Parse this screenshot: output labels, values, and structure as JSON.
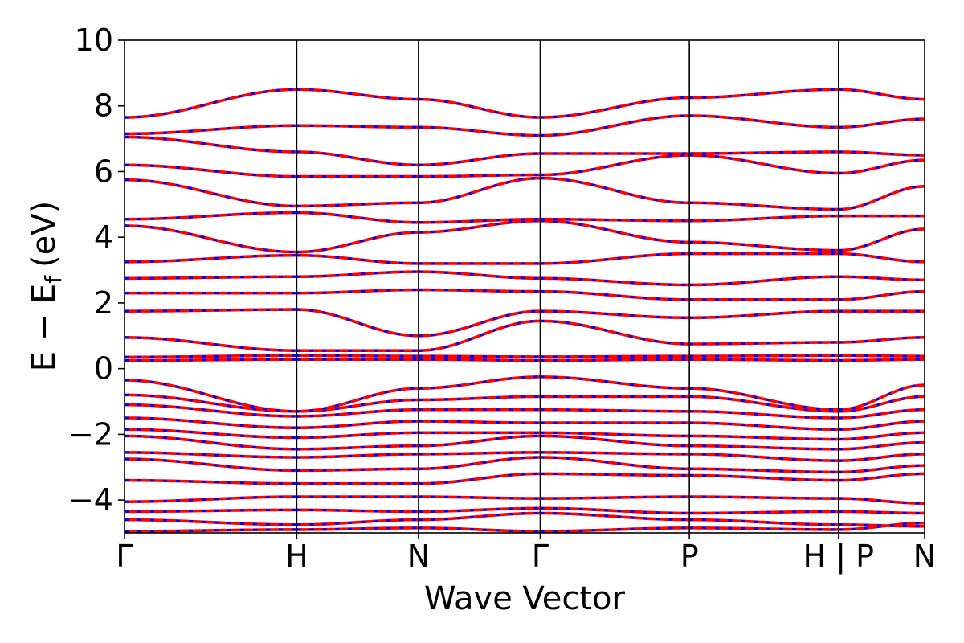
{
  "chart_data": {
    "type": "line",
    "xlabel": "Wave Vector",
    "ylabel": {
      "main": "E − E",
      "subscript": "f",
      "unit": "(eV)"
    },
    "ylim": [
      -5,
      10
    ],
    "yticks": [
      -4,
      -2,
      0,
      2,
      4,
      6,
      8,
      10
    ],
    "grid": false,
    "legend": "none",
    "k_path": [
      {
        "label": "Γ",
        "x": 0.0
      },
      {
        "label": "H",
        "x": 1.0
      },
      {
        "label": "N",
        "x": 1.707
      },
      {
        "label": "Γ",
        "x": 2.414
      },
      {
        "label": "P",
        "x": 3.28
      },
      {
        "label": "H | P",
        "x": 4.146
      },
      {
        "label": "N",
        "x": 4.646
      }
    ],
    "xlim": [
      0.0,
      4.646
    ],
    "segments": [
      {
        "from": "Γ",
        "to": "H",
        "x": [
          0.0,
          1.0
        ]
      },
      {
        "from": "H",
        "to": "N",
        "x": [
          1.0,
          1.707
        ]
      },
      {
        "from": "N",
        "to": "Γ",
        "x": [
          1.707,
          2.414
        ]
      },
      {
        "from": "Γ",
        "to": "P",
        "x": [
          2.414,
          3.28
        ]
      },
      {
        "from": "P",
        "to": "H",
        "x": [
          3.28,
          4.146
        ]
      },
      {
        "from": "P",
        "to": "N",
        "x": [
          4.146,
          4.646
        ]
      }
    ],
    "series": [
      {
        "style": "solid",
        "color": "#ff0000",
        "band_energies_at_kpoints": [
          [
            -4.95,
            -4.9,
            -4.85,
            -4.95,
            -4.85,
            -4.9,
            -4.7
          ],
          [
            -4.6,
            -4.75,
            -4.6,
            -4.4,
            -4.6,
            -4.75,
            -4.8
          ],
          [
            -4.35,
            -4.3,
            -4.35,
            -4.25,
            -4.4,
            -4.35,
            -4.4
          ],
          [
            -4.05,
            -3.9,
            -3.9,
            -3.95,
            -3.9,
            -3.95,
            -4.1
          ],
          [
            -3.4,
            -3.5,
            -3.5,
            -3.2,
            -3.25,
            -3.4,
            -3.2
          ],
          [
            -2.75,
            -3.1,
            -3.05,
            -2.7,
            -3.05,
            -3.15,
            -2.95
          ],
          [
            -2.55,
            -2.7,
            -2.6,
            -2.55,
            -2.6,
            -2.8,
            -2.6
          ],
          [
            -2.05,
            -2.45,
            -2.35,
            -2.05,
            -2.35,
            -2.45,
            -2.25
          ],
          [
            -1.85,
            -2.1,
            -1.95,
            -1.95,
            -2.05,
            -2.15,
            -1.95
          ],
          [
            -1.5,
            -1.8,
            -1.6,
            -1.65,
            -1.65,
            -1.85,
            -1.6
          ],
          [
            -1.1,
            -1.45,
            -1.25,
            -1.25,
            -1.3,
            -1.5,
            -1.25
          ],
          [
            -0.8,
            -1.3,
            -0.95,
            -0.85,
            -0.85,
            -1.3,
            -0.85
          ],
          [
            -0.35,
            -1.3,
            -0.6,
            -0.25,
            -0.6,
            -1.25,
            -0.5
          ],
          [
            0.25,
            0.28,
            0.28,
            0.25,
            0.28,
            0.25,
            0.28
          ],
          [
            0.35,
            0.4,
            0.38,
            0.36,
            0.38,
            0.4,
            0.38
          ],
          [
            0.95,
            0.55,
            0.55,
            1.45,
            0.75,
            0.8,
            0.95
          ],
          [
            1.75,
            1.8,
            1.0,
            1.75,
            1.55,
            1.75,
            1.75
          ],
          [
            2.3,
            2.3,
            2.4,
            2.35,
            2.1,
            2.1,
            2.35
          ],
          [
            2.75,
            2.8,
            2.95,
            2.75,
            2.55,
            2.8,
            2.7
          ],
          [
            3.25,
            3.45,
            3.2,
            3.2,
            3.5,
            3.5,
            3.25
          ],
          [
            4.35,
            3.55,
            4.15,
            4.5,
            3.85,
            3.6,
            4.25
          ],
          [
            4.55,
            4.75,
            4.45,
            4.55,
            4.5,
            4.65,
            4.65
          ],
          [
            5.75,
            4.95,
            5.05,
            5.8,
            5.05,
            4.85,
            5.55
          ],
          [
            6.2,
            5.85,
            5.85,
            5.9,
            6.5,
            5.95,
            6.35
          ],
          [
            7.05,
            6.6,
            6.2,
            6.55,
            6.55,
            6.6,
            6.5
          ],
          [
            7.15,
            7.4,
            7.35,
            7.1,
            7.7,
            7.35,
            7.6
          ],
          [
            7.65,
            8.5,
            8.2,
            7.65,
            8.25,
            8.5,
            8.2
          ]
        ]
      },
      {
        "style": "dashed",
        "color": "#0000ff"
      }
    ]
  }
}
